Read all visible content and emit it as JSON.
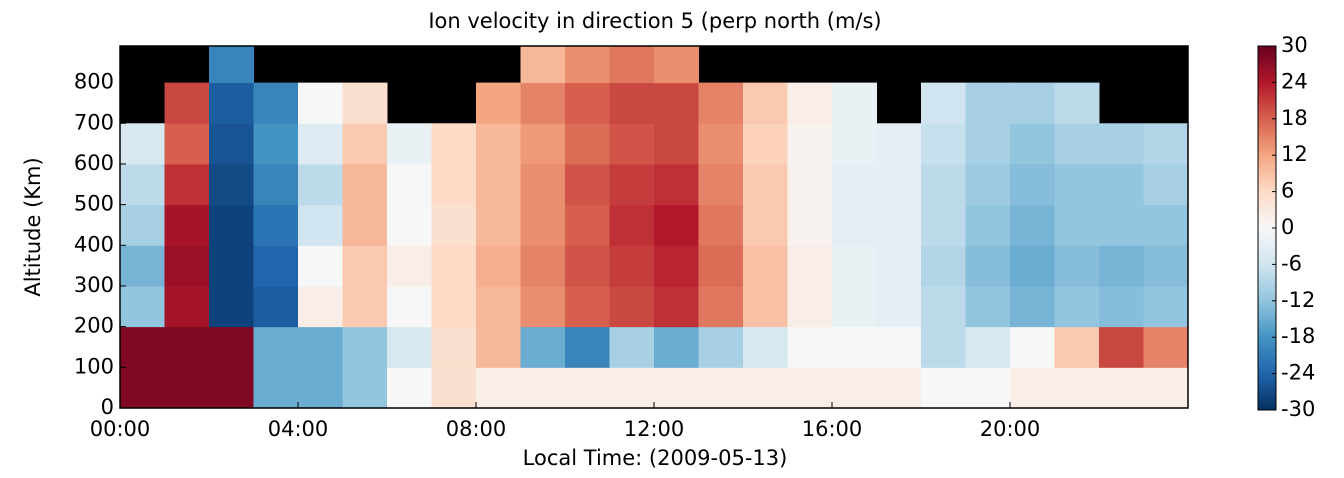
{
  "chart_data": {
    "type": "heatmap",
    "title": "Ion velocity in direction 5 (perp north (m/s)",
    "xlabel": "Local Time: (2009-05-13)",
    "ylabel": "Altitude (Km)",
    "xlim": [
      0,
      24
    ],
    "ylim": [
      0,
      890
    ],
    "xticks": [
      {
        "value": 0,
        "label": "00:00"
      },
      {
        "value": 4,
        "label": "04:00"
      },
      {
        "value": 8,
        "label": "08:00"
      },
      {
        "value": 12,
        "label": "12:00"
      },
      {
        "value": 16,
        "label": "16:00"
      },
      {
        "value": 20,
        "label": "20:00"
      }
    ],
    "yticks": [
      0,
      100,
      200,
      300,
      400,
      500,
      600,
      700,
      800
    ],
    "xbins": [
      0,
      1,
      2,
      3,
      4,
      5,
      6,
      7,
      8,
      9,
      10,
      11,
      12,
      13,
      14,
      15,
      16,
      17,
      18,
      19,
      20,
      21,
      22,
      23,
      24
    ],
    "ybins": [
      0,
      100,
      200,
      300,
      400,
      500,
      600,
      700,
      800,
      890
    ],
    "z": [
      [
        28,
        28,
        28,
        -15,
        -15,
        -12,
        0,
        5,
        2,
        2,
        2,
        2,
        2,
        2,
        2,
        2,
        2,
        2,
        0,
        0,
        2,
        2,
        2,
        2
      ],
      [
        28,
        28,
        28,
        -15,
        -15,
        -12,
        -5,
        5,
        10,
        -15,
        -20,
        -10,
        -15,
        -10,
        -5,
        0,
        0,
        0,
        -8,
        -5,
        0,
        8,
        20,
        15
      ],
      [
        -12,
        25,
        -28,
        -25,
        2,
        8,
        0,
        6,
        10,
        14,
        18,
        20,
        22,
        16,
        9,
        2,
        -2,
        -3,
        -8,
        -12,
        -14,
        -12,
        -13,
        -12
      ],
      [
        -14,
        26,
        -28,
        -24,
        0,
        8,
        2,
        6,
        11,
        15,
        19,
        21,
        23,
        17,
        9,
        2,
        -2,
        -3,
        -9,
        -13,
        -15,
        -13,
        -14,
        -13
      ],
      [
        -10,
        25,
        -28,
        -22,
        -6,
        10,
        0,
        5,
        10,
        14,
        18,
        22,
        24,
        16,
        8,
        1,
        -3,
        -3,
        -8,
        -12,
        -14,
        -12,
        -12,
        -12
      ],
      [
        -8,
        22,
        -27,
        -20,
        -8,
        10,
        0,
        6,
        10,
        14,
        19,
        21,
        22,
        15,
        8,
        1,
        -3,
        -3,
        -8,
        -11,
        -13,
        -12,
        -12,
        -10
      ],
      [
        -5,
        18,
        -26,
        -18,
        -4,
        8,
        -2,
        6,
        10,
        13,
        17,
        19,
        20,
        14,
        7,
        1,
        -2,
        -3,
        -7,
        -10,
        -12,
        -10,
        -10,
        -9
      ],
      [
        null,
        20,
        -25,
        -20,
        0,
        5,
        null,
        null,
        12,
        15,
        18,
        20,
        20,
        15,
        8,
        2,
        -2,
        null,
        -6,
        -10,
        -10,
        -8,
        null,
        null
      ],
      [
        null,
        null,
        -20,
        null,
        null,
        null,
        null,
        null,
        null,
        10,
        14,
        16,
        14,
        null,
        null,
        null,
        null,
        null,
        null,
        null,
        null,
        null,
        null,
        null
      ]
    ],
    "clim": [
      -30,
      30
    ],
    "cticks": [
      30,
      24,
      18,
      12,
      6,
      0,
      -6,
      -12,
      -18,
      -24,
      -30
    ],
    "colormap": [
      "#053061",
      "#2166ac",
      "#4393c3",
      "#92c5de",
      "#d1e5f0",
      "#f7f7f7",
      "#fddbc7",
      "#f4a582",
      "#d6604d",
      "#b2182b",
      "#67001f"
    ],
    "missing_color": "#000000"
  }
}
